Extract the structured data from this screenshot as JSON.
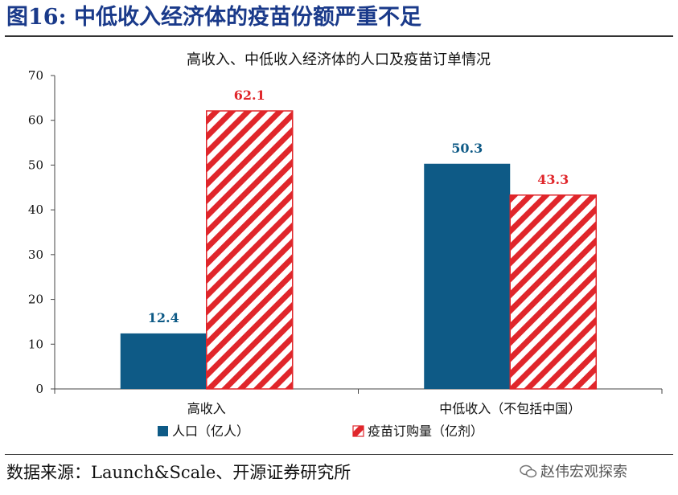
{
  "figure_title": "图16:  中低收入经济体的疫苗份额严重不足",
  "source_note": "数据来源：Launch&Scale、开源证券研究所",
  "watermark_text": "赵伟宏观探索",
  "colors": {
    "title": "#1a3a8a",
    "population": "#0e5a86",
    "vaccine": "#e0262b",
    "value_label_population": "#0e5a86",
    "value_label_vaccine": "#e0262b"
  },
  "chart_data": {
    "type": "bar",
    "title": "高收入、中低收入经济体的人口及疫苗订单情况",
    "categories": [
      "高收入",
      "中低收入（不包括中国）"
    ],
    "series": [
      {
        "name": "人口（亿人）",
        "values": [
          12.4,
          50.3
        ],
        "pattern": "solid"
      },
      {
        "name": "疫苗订购量（亿剂）",
        "values": [
          62.1,
          43.3
        ],
        "pattern": "diagonal-hatch"
      }
    ],
    "data_labels": [
      [
        "12.4",
        "50.3"
      ],
      [
        "62.1",
        "43.3"
      ]
    ],
    "yticks": [
      "0",
      "10",
      "20",
      "30",
      "40",
      "50",
      "60",
      "70"
    ],
    "ylim": [
      0,
      70
    ],
    "xlabel": "",
    "ylabel": "",
    "grid": false,
    "legend_position": "bottom"
  }
}
